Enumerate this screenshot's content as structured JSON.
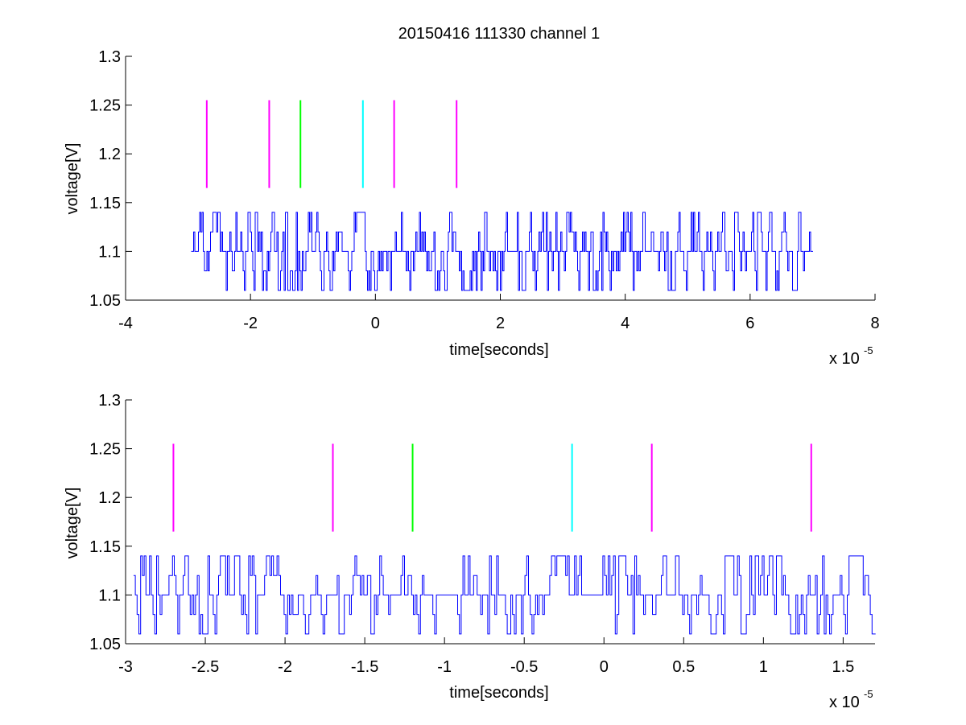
{
  "figure": {
    "background": "#ffffff",
    "axis_color": "#000000",
    "trace_color": "#0000ff"
  },
  "chart_data": [
    {
      "type": "line",
      "title": "20150416 111330 channel 1",
      "xlabel": "time[seconds]",
      "ylabel": "voltage[V]",
      "x_multiplier": "x 10",
      "x_exponent": "-5",
      "xlim": [
        -4,
        8
      ],
      "ylim": [
        1.05,
        1.3
      ],
      "xticks": [
        -4,
        -2,
        0,
        2,
        4,
        6,
        8
      ],
      "xtick_labels": [
        "-4",
        "-2",
        "0",
        "2",
        "4",
        "6",
        "8"
      ],
      "yticks": [
        1.05,
        1.1,
        1.15,
        1.2,
        1.25,
        1.3
      ],
      "ytick_labels": [
        "1.05",
        "1.1",
        "1.15",
        "1.2",
        "1.25",
        "1.3"
      ],
      "grid": false,
      "series": [
        {
          "color": "#0000ff",
          "x_range": [
            -2.95,
            7.0
          ],
          "levels": [
            1.06,
            1.08,
            1.1,
            1.12,
            1.14
          ],
          "baseline": 1.1,
          "description_style": "noisy stepped trace"
        }
      ],
      "markers": [
        {
          "x": -2.7,
          "y_range": [
            1.165,
            1.255
          ],
          "color": "#ff00ff"
        },
        {
          "x": -1.7,
          "y_range": [
            1.165,
            1.255
          ],
          "color": "#ff00ff"
        },
        {
          "x": -1.2,
          "y_range": [
            1.165,
            1.255
          ],
          "color": "#00ff00"
        },
        {
          "x": -0.2,
          "y_range": [
            1.165,
            1.255
          ],
          "color": "#00ffff"
        },
        {
          "x": 0.3,
          "y_range": [
            1.165,
            1.255
          ],
          "color": "#ff00ff"
        },
        {
          "x": 1.3,
          "y_range": [
            1.165,
            1.255
          ],
          "color": "#ff00ff"
        }
      ]
    },
    {
      "type": "line",
      "title": "",
      "xlabel": "time[seconds]",
      "ylabel": "voltage[V]",
      "x_multiplier": "x 10",
      "x_exponent": "-5",
      "xlim": [
        -3.0,
        1.7
      ],
      "ylim": [
        1.05,
        1.3
      ],
      "xticks": [
        -3,
        -2.5,
        -2,
        -1.5,
        -1,
        -0.5,
        0,
        0.5,
        1,
        1.5
      ],
      "xtick_labels": [
        "-3",
        "-2.5",
        "-2",
        "-1.5",
        "-1",
        "-0.5",
        "0",
        "0.5",
        "1",
        "1.5"
      ],
      "yticks": [
        1.05,
        1.1,
        1.15,
        1.2,
        1.25,
        1.3
      ],
      "ytick_labels": [
        "1.05",
        "1.1",
        "1.15",
        "1.2",
        "1.25",
        "1.3"
      ],
      "grid": false,
      "series": [
        {
          "color": "#0000ff",
          "x_range": [
            -2.95,
            1.7
          ],
          "levels": [
            1.06,
            1.08,
            1.1,
            1.12,
            1.14
          ],
          "baseline": 1.1,
          "description_style": "noisy stepped trace"
        }
      ],
      "markers": [
        {
          "x": -2.7,
          "y_range": [
            1.165,
            1.255
          ],
          "color": "#ff00ff"
        },
        {
          "x": -1.7,
          "y_range": [
            1.165,
            1.255
          ],
          "color": "#ff00ff"
        },
        {
          "x": -1.2,
          "y_range": [
            1.165,
            1.255
          ],
          "color": "#00ff00"
        },
        {
          "x": -0.2,
          "y_range": [
            1.165,
            1.255
          ],
          "color": "#00ffff"
        },
        {
          "x": 0.3,
          "y_range": [
            1.165,
            1.255
          ],
          "color": "#ff00ff"
        },
        {
          "x": 1.3,
          "y_range": [
            1.165,
            1.255
          ],
          "color": "#ff00ff"
        }
      ]
    }
  ]
}
